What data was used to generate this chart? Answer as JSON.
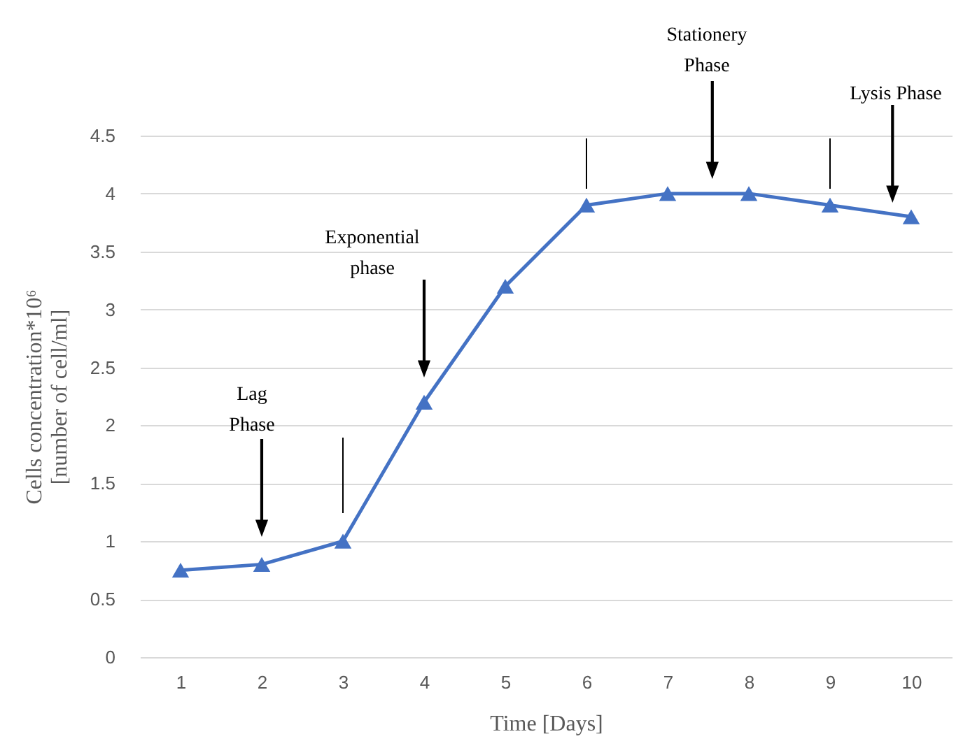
{
  "chart_data": {
    "type": "line",
    "xlabel": "Time [Days]",
    "ylabel": "Cells concentration*10⁶ [number of cell/ml]",
    "categories": [
      "1",
      "2",
      "3",
      "4",
      "5",
      "6",
      "7",
      "8",
      "9",
      "10"
    ],
    "values": [
      0.75,
      0.8,
      1.0,
      2.2,
      3.2,
      3.9,
      4.0,
      4.0,
      3.9,
      3.8
    ],
    "color": "#4472c4",
    "marker": "triangle",
    "ylim": [
      0,
      4.5
    ],
    "yticks": [
      0,
      0.5,
      1,
      1.5,
      2,
      2.5,
      3,
      3.5,
      4,
      4.5
    ],
    "grid": "y",
    "annotations": [
      "Lag Phase",
      "Exponential phase",
      "Stationery Phase",
      "Lysis Phase"
    ]
  }
}
